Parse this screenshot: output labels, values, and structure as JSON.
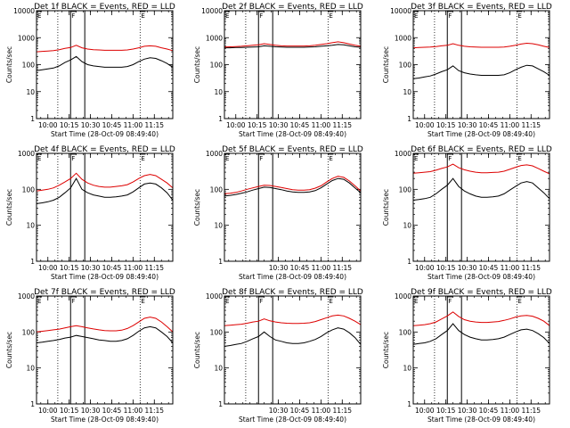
{
  "chart_data": [
    {
      "type": "line",
      "title": "Det 1f BLACK = Events, RED = LLD",
      "xlabel": "Start Time (28-Oct-09 08:49:40)",
      "ylabel": "Counts/sec",
      "log_y": true,
      "ylim": [
        1,
        10000
      ],
      "xlim": [
        "09:52",
        "11:28"
      ],
      "x_tick_labels": [
        "10:00",
        "10:15",
        "10:30",
        "10:45",
        "11:00",
        "11:15"
      ],
      "y_tick_labels": [
        "1",
        "10",
        "100",
        "1000",
        "10000"
      ],
      "flags": [
        {
          "label": "E",
          "time": "09:52"
        },
        {
          "label": "F",
          "time": "10:16"
        },
        {
          "label": "E",
          "time": "11:05"
        }
      ],
      "solid_lines": [
        "10:16",
        "10:26"
      ],
      "dotted_lines": [
        "10:07",
        "11:05"
      ],
      "series": [
        {
          "color": "#000000",
          "values": [
            60,
            65,
            70,
            75,
            90,
            120,
            150,
            200,
            130,
            100,
            90,
            85,
            80,
            80,
            80,
            80,
            85,
            100,
            130,
            160,
            180,
            170,
            140,
            110,
            80
          ]
        },
        {
          "color": "#dd0000",
          "values": [
            300,
            310,
            320,
            330,
            360,
            400,
            430,
            520,
            420,
            380,
            360,
            350,
            340,
            340,
            340,
            340,
            350,
            380,
            420,
            480,
            500,
            480,
            420,
            380,
            330
          ]
        }
      ]
    },
    {
      "type": "line",
      "title": "Det 2f BLACK = Events, RED = LLD",
      "xlabel": "Start Time (28-Oct-09 08:49:40)",
      "ylabel": "Counts/sec",
      "log_y": true,
      "ylim": [
        1,
        10000
      ],
      "xlim": [
        "09:52",
        "11:28"
      ],
      "x_tick_labels": [
        "10:00",
        "10:15",
        "10:30",
        "10:45",
        "11:00",
        "11:15"
      ],
      "y_tick_labels": [
        "1",
        "10",
        "100",
        "1000",
        "10000"
      ],
      "flags": [
        {
          "label": "E",
          "time": "09:52"
        },
        {
          "label": "F",
          "time": "10:16"
        },
        {
          "label": "E",
          "time": "11:05"
        }
      ],
      "solid_lines": [
        "10:16",
        "10:26"
      ],
      "dotted_lines": [
        "10:07",
        "11:05"
      ],
      "series": [
        {
          "color": "#000000",
          "values": [
            420,
            420,
            430,
            430,
            440,
            450,
            460,
            500,
            480,
            460,
            450,
            440,
            440,
            440,
            440,
            450,
            460,
            480,
            500,
            520,
            560,
            540,
            500,
            460,
            440
          ]
        },
        {
          "color": "#dd0000",
          "values": [
            450,
            460,
            470,
            480,
            500,
            520,
            540,
            600,
            560,
            520,
            500,
            490,
            490,
            490,
            490,
            500,
            520,
            560,
            600,
            650,
            700,
            650,
            580,
            520,
            480
          ]
        }
      ]
    },
    {
      "type": "line",
      "title": "Det 3f BLACK = Events, RED = LLD",
      "xlabel": "Start Time (28-Oct-09 08:49:40)",
      "ylabel": "Counts/sec",
      "log_y": true,
      "ylim": [
        1,
        10000
      ],
      "xlim": [
        "09:52",
        "11:28"
      ],
      "x_tick_labels": [
        "10:00",
        "10:15",
        "10:30",
        "10:45",
        "11:00",
        "11:15"
      ],
      "y_tick_labels": [
        "1",
        "10",
        "100",
        "1000",
        "10000"
      ],
      "flags": [
        {
          "label": "E",
          "time": "09:52"
        },
        {
          "label": "F",
          "time": "10:16"
        },
        {
          "label": "E",
          "time": "11:05"
        }
      ],
      "solid_lines": [
        "10:16",
        "10:26"
      ],
      "dotted_lines": [
        "10:07",
        "11:05"
      ],
      "series": [
        {
          "color": "#000000",
          "values": [
            30,
            32,
            35,
            38,
            45,
            55,
            65,
            90,
            60,
            50,
            45,
            42,
            40,
            40,
            40,
            40,
            42,
            50,
            65,
            80,
            95,
            90,
            70,
            55,
            40
          ]
        },
        {
          "color": "#dd0000",
          "values": [
            420,
            430,
            440,
            450,
            470,
            500,
            520,
            600,
            520,
            480,
            460,
            450,
            440,
            440,
            440,
            440,
            450,
            480,
            520,
            580,
            620,
            600,
            540,
            480,
            430
          ]
        }
      ]
    },
    {
      "type": "line",
      "title": "Det 4f BLACK = Events, RED = LLD",
      "xlabel": "Start Time (28-Oct-09 08:49:40)",
      "ylabel": "Counts/sec",
      "log_y": true,
      "ylim": [
        1,
        1000
      ],
      "xlim": [
        "09:52",
        "11:28"
      ],
      "x_tick_labels": [
        "10:00",
        "10:15",
        "10:30",
        "10:45",
        "11:00",
        "11:15"
      ],
      "y_tick_labels": [
        "1",
        "10",
        "100",
        "1000"
      ],
      "flags": [
        {
          "label": "E",
          "time": "09:52"
        },
        {
          "label": "F",
          "time": "10:16"
        },
        {
          "label": "E",
          "time": "11:05"
        }
      ],
      "solid_lines": [
        "10:16",
        "10:26"
      ],
      "dotted_lines": [
        "10:07",
        "11:05"
      ],
      "series": [
        {
          "color": "#000000",
          "values": [
            40,
            42,
            45,
            50,
            60,
            80,
            110,
            200,
            100,
            80,
            70,
            65,
            60,
            60,
            62,
            65,
            70,
            85,
            110,
            140,
            150,
            140,
            110,
            80,
            50
          ]
        },
        {
          "color": "#dd0000",
          "values": [
            90,
            95,
            100,
            110,
            130,
            160,
            200,
            280,
            190,
            150,
            130,
            120,
            115,
            115,
            120,
            125,
            135,
            160,
            200,
            240,
            260,
            240,
            190,
            150,
            110
          ]
        }
      ]
    },
    {
      "type": "line",
      "title": "Det 5f BLACK = Events, RED = LLD",
      "xlabel": "Start Time (28-Oct-09 08:49:40)",
      "ylabel": "Counts/sec",
      "log_y": true,
      "ylim": [
        1,
        1000
      ],
      "xlim": [
        "09:52",
        "11:28"
      ],
      "x_tick_labels": [
        "10:30",
        "10:45",
        "11:00",
        "11:15"
      ],
      "y_tick_labels": [
        "1",
        "10",
        "100",
        "1000"
      ],
      "flags": [
        {
          "label": "E",
          "time": "09:52"
        },
        {
          "label": "F",
          "time": "10:16"
        },
        {
          "label": "E",
          "time": "11:05"
        }
      ],
      "solid_lines": [
        "10:16",
        "10:26"
      ],
      "dotted_lines": [
        "10:07",
        "11:05"
      ],
      "series": [
        {
          "color": "#000000",
          "values": [
            65,
            68,
            72,
            78,
            85,
            95,
            105,
            115,
            112,
            105,
            98,
            90,
            85,
            82,
            82,
            85,
            92,
            110,
            140,
            175,
            200,
            190,
            150,
            110,
            80
          ]
        },
        {
          "color": "#dd0000",
          "values": [
            75,
            78,
            82,
            90,
            100,
            110,
            120,
            130,
            128,
            120,
            112,
            105,
            98,
            95,
            95,
            98,
            108,
            125,
            160,
            200,
            230,
            215,
            170,
            125,
            90
          ]
        }
      ]
    },
    {
      "type": "line",
      "title": "Det 6f BLACK = Events, RED = LLD",
      "xlabel": "Start Time (28-Oct-09 08:49:40)",
      "ylabel": "Counts/sec",
      "log_y": true,
      "ylim": [
        1,
        1000
      ],
      "xlim": [
        "09:52",
        "11:28"
      ],
      "x_tick_labels": [
        "10:00",
        "10:15",
        "10:30",
        "10:45",
        "11:00",
        "11:15"
      ],
      "y_tick_labels": [
        "1",
        "10",
        "100",
        "1000"
      ],
      "flags": [
        {
          "label": "E",
          "time": "09:52"
        },
        {
          "label": "F",
          "time": "10:16"
        },
        {
          "label": "E",
          "time": "11:05"
        }
      ],
      "solid_lines": [
        "10:16",
        "10:26"
      ],
      "dotted_lines": [
        "10:07",
        "11:05"
      ],
      "series": [
        {
          "color": "#000000",
          "values": [
            50,
            52,
            55,
            60,
            75,
            100,
            130,
            200,
            120,
            90,
            75,
            65,
            60,
            60,
            62,
            65,
            75,
            95,
            120,
            150,
            165,
            150,
            110,
            80,
            55
          ]
        },
        {
          "color": "#dd0000",
          "values": [
            280,
            290,
            300,
            310,
            340,
            380,
            420,
            500,
            400,
            350,
            320,
            300,
            290,
            290,
            295,
            300,
            320,
            360,
            410,
            460,
            480,
            450,
            380,
            320,
            270
          ]
        }
      ]
    },
    {
      "type": "line",
      "title": "Det 7f BLACK = Events, RED = LLD",
      "xlabel": "Start Time (28-Oct-09 08:49:40)",
      "ylabel": "Counts/sec",
      "log_y": true,
      "ylim": [
        1,
        1000
      ],
      "xlim": [
        "09:52",
        "11:28"
      ],
      "x_tick_labels": [
        "10:00",
        "10:15",
        "10:30",
        "10:45",
        "11:00",
        "11:15"
      ],
      "y_tick_labels": [
        "1",
        "10",
        "100",
        "1000"
      ],
      "flags": [
        {
          "label": "E",
          "time": "09:52"
        },
        {
          "label": "F",
          "time": "10:16"
        },
        {
          "label": "E",
          "time": "11:05"
        }
      ],
      "solid_lines": [
        "10:16",
        "10:26"
      ],
      "dotted_lines": [
        "10:07",
        "11:05"
      ],
      "series": [
        {
          "color": "#000000",
          "values": [
            50,
            52,
            55,
            58,
            62,
            68,
            72,
            80,
            75,
            70,
            65,
            60,
            58,
            55,
            55,
            58,
            65,
            80,
            105,
            130,
            140,
            130,
            100,
            75,
            50
          ]
        },
        {
          "color": "#dd0000",
          "values": [
            100,
            105,
            110,
            115,
            120,
            130,
            140,
            150,
            140,
            130,
            122,
            115,
            110,
            108,
            108,
            112,
            125,
            150,
            190,
            240,
            260,
            240,
            190,
            140,
            100
          ]
        }
      ]
    },
    {
      "type": "line",
      "title": "Det 8f BLACK = Events, RED = LLD",
      "xlabel": "Start Time (28-Oct-09 08:49:40)",
      "ylabel": "Counts/sec",
      "log_y": true,
      "ylim": [
        1,
        1000
      ],
      "xlim": [
        "09:52",
        "11:28"
      ],
      "x_tick_labels": [
        "10:30",
        "10:45",
        "11:00",
        "11:15"
      ],
      "y_tick_labels": [
        "1",
        "10",
        "100",
        "1000"
      ],
      "flags": [
        {
          "label": "E",
          "time": "09:52"
        },
        {
          "label": "F",
          "time": "10:16"
        },
        {
          "label": "E",
          "time": "11:05"
        }
      ],
      "solid_lines": [
        "10:16",
        "10:26"
      ],
      "dotted_lines": [
        "10:07",
        "11:05"
      ],
      "series": [
        {
          "color": "#000000",
          "values": [
            40,
            42,
            45,
            48,
            55,
            65,
            75,
            100,
            75,
            60,
            55,
            50,
            48,
            48,
            50,
            55,
            62,
            75,
            95,
            115,
            130,
            120,
            95,
            70,
            45
          ]
        },
        {
          "color": "#dd0000",
          "values": [
            150,
            155,
            160,
            165,
            175,
            190,
            200,
            230,
            205,
            190,
            180,
            175,
            172,
            172,
            175,
            180,
            195,
            220,
            250,
            280,
            295,
            280,
            240,
            200,
            160
          ]
        }
      ]
    },
    {
      "type": "line",
      "title": "Det 9f BLACK = Events, RED = LLD",
      "xlabel": "Start Time (28-Oct-09 08:49:40)",
      "ylabel": "Counts/sec",
      "log_y": true,
      "ylim": [
        1,
        1000
      ],
      "xlim": [
        "09:52",
        "11:28"
      ],
      "x_tick_labels": [
        "10:00",
        "10:15",
        "10:30",
        "10:45",
        "11:00",
        "11:15"
      ],
      "y_tick_labels": [
        "1",
        "10",
        "100",
        "1000"
      ],
      "flags": [
        {
          "label": "E",
          "time": "09:52"
        },
        {
          "label": "F",
          "time": "10:16"
        },
        {
          "label": "E",
          "time": "11:05"
        }
      ],
      "solid_lines": [
        "10:16",
        "10:26"
      ],
      "dotted_lines": [
        "10:07",
        "11:05"
      ],
      "series": [
        {
          "color": "#000000",
          "values": [
            45,
            48,
            50,
            55,
            65,
            85,
            110,
            170,
            110,
            85,
            72,
            65,
            60,
            60,
            62,
            65,
            72,
            85,
            100,
            115,
            120,
            110,
            90,
            70,
            48
          ]
        },
        {
          "color": "#dd0000",
          "values": [
            150,
            155,
            160,
            170,
            190,
            230,
            280,
            360,
            270,
            220,
            200,
            190,
            185,
            185,
            190,
            195,
            210,
            230,
            260,
            280,
            290,
            275,
            240,
            200,
            150
          ]
        }
      ]
    }
  ]
}
